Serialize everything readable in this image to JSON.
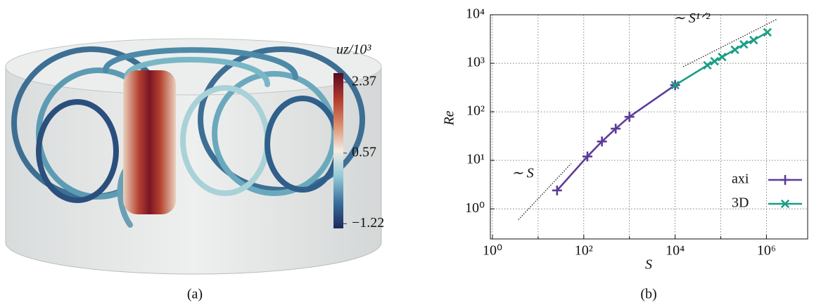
{
  "chart_data": [
    {
      "type": "colorbar",
      "label": "uz/10³",
      "caption": "(a)",
      "clim": [
        -1.34,
        2.6
      ],
      "ticks": [
        2.37,
        0.57,
        {
          "value": -1.22,
          "label": "−1.22"
        }
      ],
      "colormap": [
        "#1b2a5c",
        "#3a6f9c",
        "#8fcad6",
        "#f3ece3",
        "#dc8c6a",
        "#b23a2c",
        "#5a0822"
      ]
    },
    {
      "type": "line",
      "caption": "(b)",
      "xlabel": "S",
      "ylabel": "Re",
      "log": true,
      "grid": true,
      "xlim": [
        0.9,
        8000000
      ],
      "ylim": [
        0.24,
        10000
      ],
      "xticks": [
        {
          "value": 1,
          "label": "10⁰"
        },
        {
          "value": 100,
          "label": "10²"
        },
        {
          "value": 10000,
          "label": "10⁴"
        },
        {
          "value": 1000000,
          "label": "10⁶"
        }
      ],
      "xgrid": [
        10,
        1000,
        100000
      ],
      "yticks": [
        {
          "value": 1,
          "label": "10⁰"
        },
        {
          "value": 10,
          "label": "10¹"
        },
        {
          "value": 100,
          "label": "10²"
        },
        {
          "value": 1000,
          "label": "10³"
        },
        {
          "value": 10000,
          "label": "10⁴"
        }
      ],
      "legend": "lower right",
      "series": [
        {
          "name": "axi",
          "color": "#5e3c99",
          "marker": "plus",
          "x": [
            26,
            120,
            250,
            500,
            1000,
            10000
          ],
          "y": [
            2.4,
            12,
            24.5,
            45,
            79,
            355
          ]
        },
        {
          "name": "3D",
          "color": "#1a9e85",
          "marker": "x",
          "x": [
            10000,
            51000,
            73000,
            107000,
            204000,
            320000,
            525000,
            1050000
          ],
          "y": [
            355,
            910,
            1100,
            1350,
            1900,
            2450,
            3000,
            4350
          ]
        }
      ],
      "guides": [
        {
          "label": "∼ S",
          "x": [
            3.7,
            53
          ],
          "y": [
            0.6,
            8.6
          ]
        },
        {
          "label": "∼ S¹ᐟ²",
          "x": [
            15000,
            1700000
          ],
          "y": [
            850,
            8100
          ]
        }
      ]
    }
  ]
}
